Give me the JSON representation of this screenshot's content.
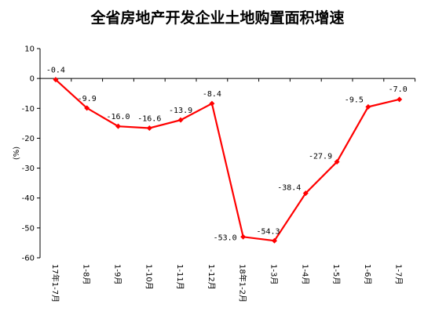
{
  "chart_data": {
    "type": "line",
    "title": "全省房地产开发企业土地购置面积增速",
    "ylabel": "(%)",
    "xlabel": "",
    "ylim": [
      -60,
      10
    ],
    "yticks": [
      10,
      0,
      -10,
      -20,
      -30,
      -40,
      -50,
      -60
    ],
    "categories": [
      "17年1-7月",
      "1-8月",
      "1-9月",
      "1-10月",
      "1-11月",
      "1-12月",
      "18年1-2月",
      "1-3月",
      "1-4月",
      "1-5月",
      "1-6月",
      "1-7月"
    ],
    "series": [
      {
        "values": [
          -0.4,
          -9.9,
          -16.0,
          -16.6,
          -13.9,
          -8.4,
          -53.0,
          -54.3,
          -38.4,
          -27.9,
          -9.5,
          -7.0
        ],
        "labels": [
          "-0.4",
          "-9.9",
          "-16.0",
          "-16.6",
          "-13.9",
          "-8.4",
          "-53.0",
          "-54.3",
          "-38.4",
          "-27.9",
          "-9.5",
          "-7.0"
        ],
        "color": "#ff0000"
      }
    ],
    "grid": false,
    "legend": "none"
  }
}
